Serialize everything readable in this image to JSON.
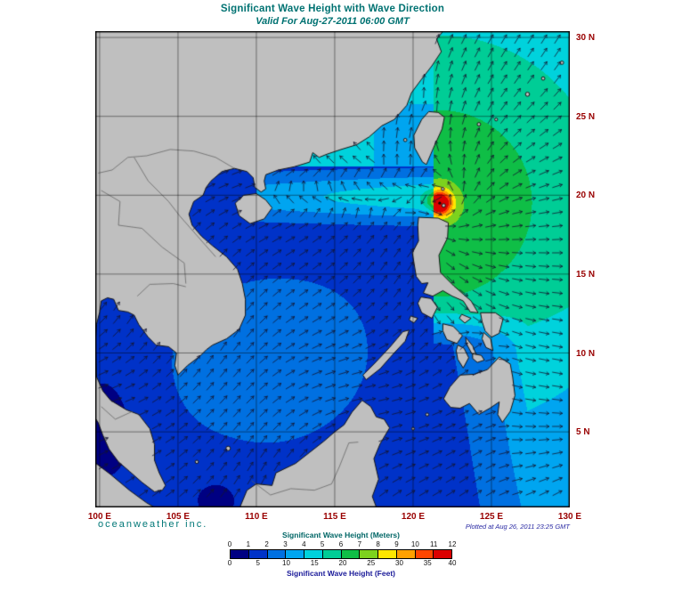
{
  "title": "Significant Wave Height with Wave Direction",
  "subtitle": "Valid For Aug-27-2011 06:00 GMT",
  "branding": "oceanweather inc.",
  "plotted_at": "Plotted at Aug 26, 2011 23:25 GMT",
  "colors": {
    "title": "#007272",
    "subtitle": "#007272",
    "tick_labels": "#990000",
    "tick_numbers": "#111111",
    "branding": "#007777",
    "plotted": "#2929a3",
    "meters_label": "#006666",
    "feet_label": "#1a1a99"
  },
  "axes": {
    "lat_ticks": [
      {
        "label": "30 N",
        "lat": 30
      },
      {
        "label": "25 N",
        "lat": 25
      },
      {
        "label": "20 N",
        "lat": 20
      },
      {
        "label": "15 N",
        "lat": 15
      },
      {
        "label": "10 N",
        "lat": 10
      },
      {
        "label": "5 N",
        "lat": 5
      }
    ],
    "lon_ticks": [
      {
        "label": "100 E",
        "lon": 100
      },
      {
        "label": "105 E",
        "lon": 105
      },
      {
        "label": "110 E",
        "lon": 110
      },
      {
        "label": "115 E",
        "lon": 115
      },
      {
        "label": "120 E",
        "lon": 120
      },
      {
        "label": "125 E",
        "lon": 125
      },
      {
        "label": "130 E",
        "lon": 130
      }
    ]
  },
  "legend": {
    "meters_label": "Significant Wave Height (Meters)",
    "feet_label": "Significant Wave Height (Feet)",
    "meters_ticks": [
      0,
      1,
      2,
      3,
      4,
      5,
      6,
      7,
      8,
      9,
      10,
      11,
      12
    ],
    "feet_ticks": [
      0,
      5,
      10,
      15,
      20,
      25,
      30,
      35,
      40
    ],
    "band_colors": [
      "#000082",
      "#0032c8",
      "#0070e1",
      "#00a5f0",
      "#00d2dc",
      "#00cd96",
      "#0fbe46",
      "#7dd21e",
      "#ffe600",
      "#ffa000",
      "#ff4600",
      "#dc0000"
    ]
  },
  "chart_data": {
    "type": "heatmap",
    "title": "Significant Wave Height with Wave Direction",
    "valid_time": "Aug-27-2011 06:00 GMT",
    "lon_range": [
      100,
      130
    ],
    "lat_range": [
      0,
      30
    ],
    "units": [
      "Meters",
      "Feet"
    ],
    "scale_meters": [
      0,
      12
    ],
    "scale_feet": [
      0,
      40
    ],
    "storm_center_estimate": {
      "lon": 121.7,
      "lat": 19.5,
      "max_wave_band_m": "11-12"
    }
  },
  "map": {
    "bounds": {
      "lon_min": 99.72,
      "lon_max": 130.0,
      "lat_min": 0.21,
      "lat_max": 30.4
    },
    "grid_step_deg": 5,
    "storm": {
      "lon": 121.7,
      "lat": 19.5
    },
    "land_color": "#bfbfbf",
    "coast_color": "#151515",
    "grid_color": "rgba(0,0,0,0.75)",
    "border_color": "#5a5a5a",
    "arrow_color": "#14142d",
    "land": {
      "asia": [
        [
          99.5,
          30.5
        ],
        [
          122.0,
          30.5
        ],
        [
          121.5,
          29.9
        ],
        [
          121.8,
          29.1
        ],
        [
          121.2,
          28.2
        ],
        [
          120.5,
          27.3
        ],
        [
          119.9,
          26.5
        ],
        [
          119.6,
          25.7
        ],
        [
          118.8,
          24.8
        ],
        [
          118.0,
          24.4
        ],
        [
          117.2,
          23.7
        ],
        [
          116.4,
          23.2
        ],
        [
          115.4,
          22.9
        ],
        [
          114.5,
          22.6
        ],
        [
          114.0,
          22.4
        ],
        [
          113.6,
          22.7
        ],
        [
          113.4,
          22.1
        ],
        [
          112.4,
          21.8
        ],
        [
          111.4,
          21.6
        ],
        [
          110.6,
          21.3
        ],
        [
          110.5,
          20.9
        ],
        [
          110.6,
          20.4
        ],
        [
          110.3,
          20.2
        ],
        [
          109.9,
          20.5
        ],
        [
          109.8,
          21.1
        ],
        [
          109.4,
          21.5
        ],
        [
          108.6,
          21.7
        ],
        [
          107.8,
          21.5
        ],
        [
          107.1,
          20.9
        ],
        [
          106.8,
          20.5
        ],
        [
          106.6,
          20.0
        ],
        [
          106.0,
          19.6
        ],
        [
          105.7,
          18.8
        ],
        [
          105.9,
          18.1
        ],
        [
          106.5,
          17.4
        ],
        [
          107.2,
          16.8
        ],
        [
          108.1,
          16.1
        ],
        [
          108.8,
          15.3
        ],
        [
          109.1,
          14.4
        ],
        [
          109.3,
          13.4
        ],
        [
          109.3,
          12.4
        ],
        [
          108.9,
          11.5
        ],
        [
          108.1,
          10.9
        ],
        [
          107.2,
          10.5
        ],
        [
          106.8,
          10.2
        ],
        [
          106.4,
          9.8
        ],
        [
          105.6,
          9.2
        ],
        [
          105.0,
          8.6
        ],
        [
          104.8,
          9.2
        ],
        [
          104.9,
          10.0
        ],
        [
          104.4,
          10.4
        ],
        [
          103.6,
          10.5
        ],
        [
          103.1,
          11.0
        ],
        [
          102.5,
          11.8
        ],
        [
          102.2,
          12.4
        ],
        [
          101.8,
          12.6
        ],
        [
          101.2,
          12.7
        ],
        [
          100.9,
          13.4
        ],
        [
          100.5,
          13.5
        ],
        [
          100.1,
          13.3
        ],
        [
          100.0,
          12.6
        ],
        [
          99.8,
          11.8
        ],
        [
          99.75,
          11.0
        ],
        [
          99.75,
          10.2
        ],
        [
          99.78,
          9.2
        ],
        [
          99.8,
          8.5
        ],
        [
          100.2,
          7.6
        ],
        [
          100.7,
          7.0
        ],
        [
          101.7,
          6.4
        ],
        [
          102.5,
          6.1
        ],
        [
          103.2,
          5.2
        ],
        [
          103.5,
          4.2
        ],
        [
          103.5,
          3.2
        ],
        [
          103.8,
          2.4
        ],
        [
          104.2,
          1.6
        ],
        [
          104.0,
          1.3
        ],
        [
          103.5,
          1.2
        ],
        [
          102.7,
          1.8
        ],
        [
          101.9,
          2.5
        ],
        [
          101.2,
          3.1
        ],
        [
          100.6,
          3.9
        ],
        [
          100.2,
          4.8
        ],
        [
          99.9,
          5.6
        ],
        [
          99.5,
          6.2
        ]
      ],
      "hainan": [
        [
          108.65,
          19.5
        ],
        [
          109.2,
          20.0
        ],
        [
          110.0,
          20.1
        ],
        [
          110.6,
          19.7
        ],
        [
          111.0,
          19.2
        ],
        [
          110.5,
          18.5
        ],
        [
          109.6,
          18.2
        ],
        [
          108.9,
          18.7
        ]
      ],
      "taiwan": [
        [
          121.0,
          25.3
        ],
        [
          121.6,
          25.25
        ],
        [
          122.0,
          24.95
        ],
        [
          121.85,
          24.2
        ],
        [
          121.3,
          23.0
        ],
        [
          120.85,
          21.95
        ],
        [
          120.6,
          22.1
        ],
        [
          120.1,
          23.0
        ],
        [
          120.05,
          23.8
        ],
        [
          120.55,
          24.8
        ]
      ],
      "luzon": [
        [
          120.35,
          18.6
        ],
        [
          121.6,
          18.55
        ],
        [
          122.25,
          18.25
        ],
        [
          122.2,
          17.3
        ],
        [
          121.65,
          16.2
        ],
        [
          121.75,
          15.1
        ],
        [
          122.6,
          14.25
        ],
        [
          123.7,
          13.3
        ],
        [
          124.15,
          12.55
        ],
        [
          123.65,
          12.6
        ],
        [
          123.2,
          13.3
        ],
        [
          122.5,
          13.6
        ],
        [
          121.9,
          13.95
        ],
        [
          121.25,
          13.6
        ],
        [
          120.65,
          13.8
        ],
        [
          120.95,
          14.45
        ],
        [
          120.55,
          14.4
        ],
        [
          120.2,
          14.85
        ],
        [
          119.95,
          16.35
        ],
        [
          120.35,
          17.1
        ],
        [
          120.3,
          18.1
        ]
      ],
      "mindoro": [
        [
          120.5,
          13.55
        ],
        [
          121.15,
          13.45
        ],
        [
          121.55,
          12.9
        ],
        [
          121.2,
          12.2
        ],
        [
          120.55,
          12.55
        ],
        [
          120.3,
          13.15
        ]
      ],
      "palawan": [
        [
          117.0,
          8.3
        ],
        [
          117.9,
          9.0
        ],
        [
          118.7,
          9.9
        ],
        [
          119.5,
          10.75
        ],
        [
          119.75,
          11.45
        ],
        [
          119.35,
          11.35
        ],
        [
          118.5,
          10.35
        ],
        [
          117.55,
          9.35
        ],
        [
          116.8,
          8.6
        ]
      ],
      "busuanga": [
        [
          119.85,
          12.35
        ],
        [
          120.3,
          12.2
        ],
        [
          120.05,
          11.9
        ],
        [
          119.75,
          12.1
        ]
      ],
      "panay": [
        [
          121.9,
          11.85
        ],
        [
          122.55,
          11.7
        ],
        [
          123.15,
          11.1
        ],
        [
          122.8,
          10.6
        ],
        [
          122.15,
          10.85
        ],
        [
          121.9,
          11.4
        ]
      ],
      "negros": [
        [
          122.85,
          10.5
        ],
        [
          123.25,
          10.3
        ],
        [
          123.55,
          9.7
        ],
        [
          123.2,
          9.05
        ],
        [
          122.85,
          9.6
        ],
        [
          122.75,
          10.15
        ]
      ],
      "cebu": [
        [
          123.35,
          11.0
        ],
        [
          123.8,
          10.45
        ],
        [
          124.05,
          9.85
        ],
        [
          123.75,
          9.95
        ],
        [
          123.4,
          10.6
        ]
      ],
      "bohol": [
        [
          123.8,
          9.95
        ],
        [
          124.35,
          9.85
        ],
        [
          124.55,
          9.55
        ],
        [
          124.1,
          9.4
        ],
        [
          123.8,
          9.65
        ]
      ],
      "samar": [
        [
          124.3,
          12.55
        ],
        [
          125.25,
          12.55
        ],
        [
          125.75,
          12.2
        ],
        [
          125.5,
          11.25
        ],
        [
          125.0,
          11.0
        ],
        [
          124.6,
          11.4
        ],
        [
          124.4,
          12.0
        ]
      ],
      "leyte": [
        [
          124.5,
          11.3
        ],
        [
          124.95,
          10.9
        ],
        [
          125.1,
          10.15
        ],
        [
          124.65,
          10.35
        ],
        [
          124.4,
          10.9
        ]
      ],
      "masbate": [
        [
          123.1,
          12.45
        ],
        [
          123.7,
          12.2
        ],
        [
          123.3,
          11.9
        ],
        [
          122.95,
          12.2
        ]
      ],
      "mindanao": [
        [
          121.95,
          7.1
        ],
        [
          122.35,
          7.85
        ],
        [
          123.0,
          8.6
        ],
        [
          123.9,
          8.65
        ],
        [
          124.75,
          8.95
        ],
        [
          125.5,
          9.75
        ],
        [
          126.2,
          9.3
        ],
        [
          126.35,
          8.5
        ],
        [
          126.5,
          7.3
        ],
        [
          126.2,
          6.3
        ],
        [
          125.7,
          5.6
        ],
        [
          125.4,
          6.1
        ],
        [
          125.5,
          6.9
        ],
        [
          124.9,
          6.5
        ],
        [
          124.2,
          6.1
        ],
        [
          123.6,
          6.8
        ],
        [
          123.0,
          6.5
        ],
        [
          122.4,
          6.55
        ],
        [
          122.1,
          6.9
        ]
      ],
      "borneo": [
        [
          108.9,
          0.1
        ],
        [
          109.4,
          1.3
        ],
        [
          110.0,
          1.7
        ],
        [
          111.0,
          1.6
        ],
        [
          111.25,
          2.4
        ],
        [
          112.5,
          3.0
        ],
        [
          113.4,
          3.7
        ],
        [
          114.3,
          4.4
        ],
        [
          115.0,
          5.0
        ],
        [
          115.6,
          5.45
        ],
        [
          116.1,
          6.25
        ],
        [
          116.75,
          7.0
        ],
        [
          117.3,
          6.6
        ],
        [
          117.65,
          5.95
        ],
        [
          118.15,
          5.8
        ],
        [
          118.5,
          5.25
        ],
        [
          117.9,
          4.25
        ],
        [
          117.5,
          3.3
        ],
        [
          117.8,
          2.0
        ],
        [
          117.4,
          0.9
        ],
        [
          117.7,
          0.1
        ]
      ],
      "sumatra": [
        [
          99.5,
          3.2
        ],
        [
          100.7,
          2.3
        ],
        [
          101.9,
          1.3
        ],
        [
          103.0,
          0.5
        ],
        [
          103.7,
          0.1
        ],
        [
          99.5,
          0.1
        ]
      ]
    },
    "islets": [
      [
        108.2,
        3.95,
        2.5
      ],
      [
        106.2,
        3.1,
        1.8
      ],
      [
        121.95,
        19.35,
        2.0
      ],
      [
        121.9,
        20.4,
        1.7
      ],
      [
        119.5,
        23.5,
        1.8
      ],
      [
        124.2,
        24.5,
        1.9
      ],
      [
        125.3,
        24.8,
        1.6
      ],
      [
        127.3,
        26.4,
        2.3
      ],
      [
        128.3,
        27.4,
        1.9
      ],
      [
        129.5,
        28.4,
        1.9
      ],
      [
        120.9,
        6.1,
        1.7
      ],
      [
        120.0,
        5.2,
        1.6
      ]
    ],
    "borders": [
      [
        [
          108.6,
          21.7
        ],
        [
          107.4,
          22.4
        ],
        [
          106.0,
          22.8
        ],
        [
          104.5,
          22.9
        ],
        [
          103.0,
          22.5
        ],
        [
          101.8,
          22.4
        ],
        [
          100.8,
          21.6
        ],
        [
          99.9,
          21.4
        ]
      ],
      [
        [
          102.2,
          22.4
        ],
        [
          103.1,
          20.9
        ],
        [
          104.4,
          19.6
        ],
        [
          105.1,
          18.7
        ],
        [
          106.6,
          17.0
        ],
        [
          107.4,
          16.1
        ]
      ],
      [
        [
          100.1,
          20.3
        ],
        [
          101.3,
          19.6
        ],
        [
          101.2,
          18.1
        ],
        [
          102.7,
          17.9
        ],
        [
          104.0,
          16.7
        ],
        [
          105.4,
          15.7
        ],
        [
          105.5,
          14.4
        ]
      ],
      [
        [
          102.4,
          13.6
        ],
        [
          103.2,
          14.35
        ],
        [
          104.7,
          14.4
        ],
        [
          105.5,
          14.2
        ]
      ],
      [
        [
          100.1,
          6.6
        ],
        [
          101.0,
          5.8
        ],
        [
          102.1,
          6.3
        ]
      ],
      [
        [
          109.7,
          1.9
        ],
        [
          110.9,
          1.0
        ],
        [
          112.2,
          1.4
        ],
        [
          113.7,
          1.3
        ],
        [
          114.8,
          1.7
        ],
        [
          115.3,
          2.8
        ],
        [
          115.9,
          4.3
        ],
        [
          116.5,
          4.35
        ]
      ]
    ]
  }
}
